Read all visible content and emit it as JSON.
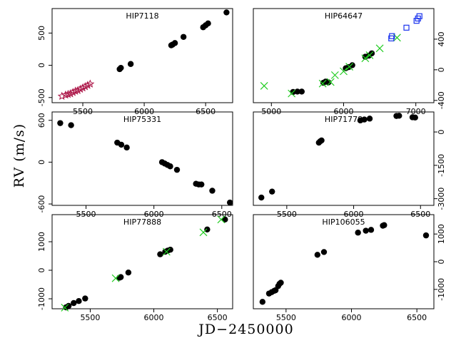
{
  "figure": {
    "ylabel": "RV (m/s)",
    "xlabel": "JD−2450000"
  },
  "colors": {
    "rv_points": "#000000",
    "series_x": "#22cc22",
    "series_star": "#aa1144",
    "series_square": "#1a33ee"
  },
  "chart_data": [
    {
      "type": "scatter",
      "title": "HIP7118",
      "xlim": [
        5250,
        6720
      ],
      "ylim": [
        -580,
        880
      ],
      "x_ticks": [
        5500,
        6000,
        6500
      ],
      "y_ticks": [
        -500,
        0,
        500
      ],
      "y_axis_side": "left",
      "series": [
        {
          "marker": "circle",
          "x": [
            5800,
            5810,
            5890,
            6220,
            6230,
            6250,
            6320,
            6480,
            6500,
            6520,
            6670
          ],
          "y": [
            -60,
            -40,
            20,
            310,
            320,
            345,
            440,
            590,
            620,
            650,
            820
          ]
        },
        {
          "marker": "star",
          "x": [
            5330,
            5360,
            5380,
            5400,
            5420,
            5440,
            5460,
            5480,
            5500,
            5520,
            5540,
            5560
          ],
          "y": [
            -480,
            -460,
            -450,
            -440,
            -420,
            -400,
            -390,
            -370,
            -350,
            -330,
            -310,
            -290
          ]
        }
      ]
    },
    {
      "type": "scatter",
      "title": "HIP64647",
      "xlim": [
        4750,
        7250
      ],
      "ylim": [
        -430,
        800
      ],
      "x_ticks": [
        5000,
        6000,
        7000
      ],
      "y_ticks": [
        -400,
        0,
        400
      ],
      "y_axis_side": "right",
      "series": [
        {
          "marker": "circle",
          "x": [
            5300,
            5360,
            5420,
            5720,
            5750,
            5790,
            6030,
            6070,
            6120,
            6300,
            6350,
            6390
          ],
          "y": [
            -290,
            -285,
            -285,
            -170,
            -155,
            -165,
            20,
            35,
            60,
            170,
            185,
            215
          ]
        },
        {
          "marker": "x",
          "x": [
            4900,
            5280,
            5710,
            5820,
            5880,
            6000,
            6080,
            6300,
            6360,
            6500,
            6740
          ],
          "y": [
            -210,
            -310,
            -180,
            -160,
            -70,
            -20,
            40,
            150,
            190,
            280,
            420
          ]
        },
        {
          "marker": "square",
          "x": [
            6660,
            6670,
            6870,
            7010,
            7030,
            7050
          ],
          "y": [
            410,
            440,
            550,
            640,
            670,
            700
          ]
        }
      ]
    },
    {
      "type": "scatter",
      "title": "HIP75331",
      "xlim": [
        5250,
        6580
      ],
      "ylim": [
        -620,
        720
      ],
      "x_ticks": [
        5500,
        6000,
        6500
      ],
      "y_ticks": [
        -600,
        0,
        600
      ],
      "y_axis_side": "left",
      "series": [
        {
          "marker": "circle",
          "x": [
            5310,
            5390,
            5730,
            5760,
            5800,
            6060,
            6080,
            6100,
            6120,
            6170,
            6310,
            6330,
            6350,
            6430,
            6560
          ],
          "y": [
            560,
            530,
            280,
            250,
            210,
            0,
            -20,
            -40,
            -60,
            -110,
            -310,
            -320,
            -320,
            -410,
            -580
          ]
        }
      ]
    },
    {
      "type": "scatter",
      "title": "HIP71778",
      "xlim": [
        5250,
        6600
      ],
      "ylim": [
        -3300,
        900
      ],
      "x_ticks": [
        5500,
        6000,
        6500
      ],
      "y_ticks": [
        -3000,
        -1500,
        0
      ],
      "y_axis_side": "right",
      "series": [
        {
          "marker": "circle",
          "x": [
            5310,
            5390,
            5740,
            5750,
            5760,
            6050,
            6080,
            6120,
            6320,
            6340,
            6440,
            6460
          ],
          "y": [
            -2950,
            -2680,
            -480,
            -420,
            -380,
            520,
            560,
            600,
            720,
            730,
            660,
            650
          ]
        }
      ]
    },
    {
      "type": "scatter",
      "title": "HIP77888",
      "xlim": [
        5200,
        6620
      ],
      "ylim": [
        -1350,
        1950
      ],
      "x_ticks": [
        5500,
        6000,
        6500
      ],
      "y_ticks": [
        -1000,
        0,
        1000
      ],
      "y_axis_side": "left",
      "series": [
        {
          "marker": "circle",
          "x": [
            5310,
            5330,
            5370,
            5410,
            5460,
            5730,
            5740,
            5800,
            6050,
            6090,
            6110,
            6130,
            6420,
            6560
          ],
          "y": [
            -1300,
            -1250,
            -1150,
            -1080,
            -990,
            -260,
            -240,
            -80,
            560,
            650,
            690,
            720,
            1430,
            1780
          ]
        },
        {
          "marker": "x",
          "x": [
            5300,
            5700,
            6100,
            6390,
            6530
          ],
          "y": [
            -1310,
            -280,
            650,
            1330,
            1780
          ]
        }
      ]
    },
    {
      "type": "scatter",
      "title": "HIP106055",
      "xlim": [
        5250,
        6630
      ],
      "ylim": [
        -1700,
        1700
      ],
      "x_ticks": [
        5500,
        6000,
        6500
      ],
      "y_ticks": [
        -1000,
        0,
        1000
      ],
      "y_axis_side": "right",
      "series": [
        {
          "marker": "circle",
          "x": [
            5320,
            5370,
            5390,
            5410,
            5420,
            5440,
            5450,
            5460,
            5740,
            5790,
            6050,
            6110,
            6150,
            6240,
            6250,
            6570
          ],
          "y": [
            -1450,
            -1150,
            -1100,
            -1050,
            -1030,
            -880,
            -800,
            -760,
            250,
            350,
            1050,
            1120,
            1150,
            1300,
            1320,
            950
          ]
        }
      ]
    }
  ]
}
